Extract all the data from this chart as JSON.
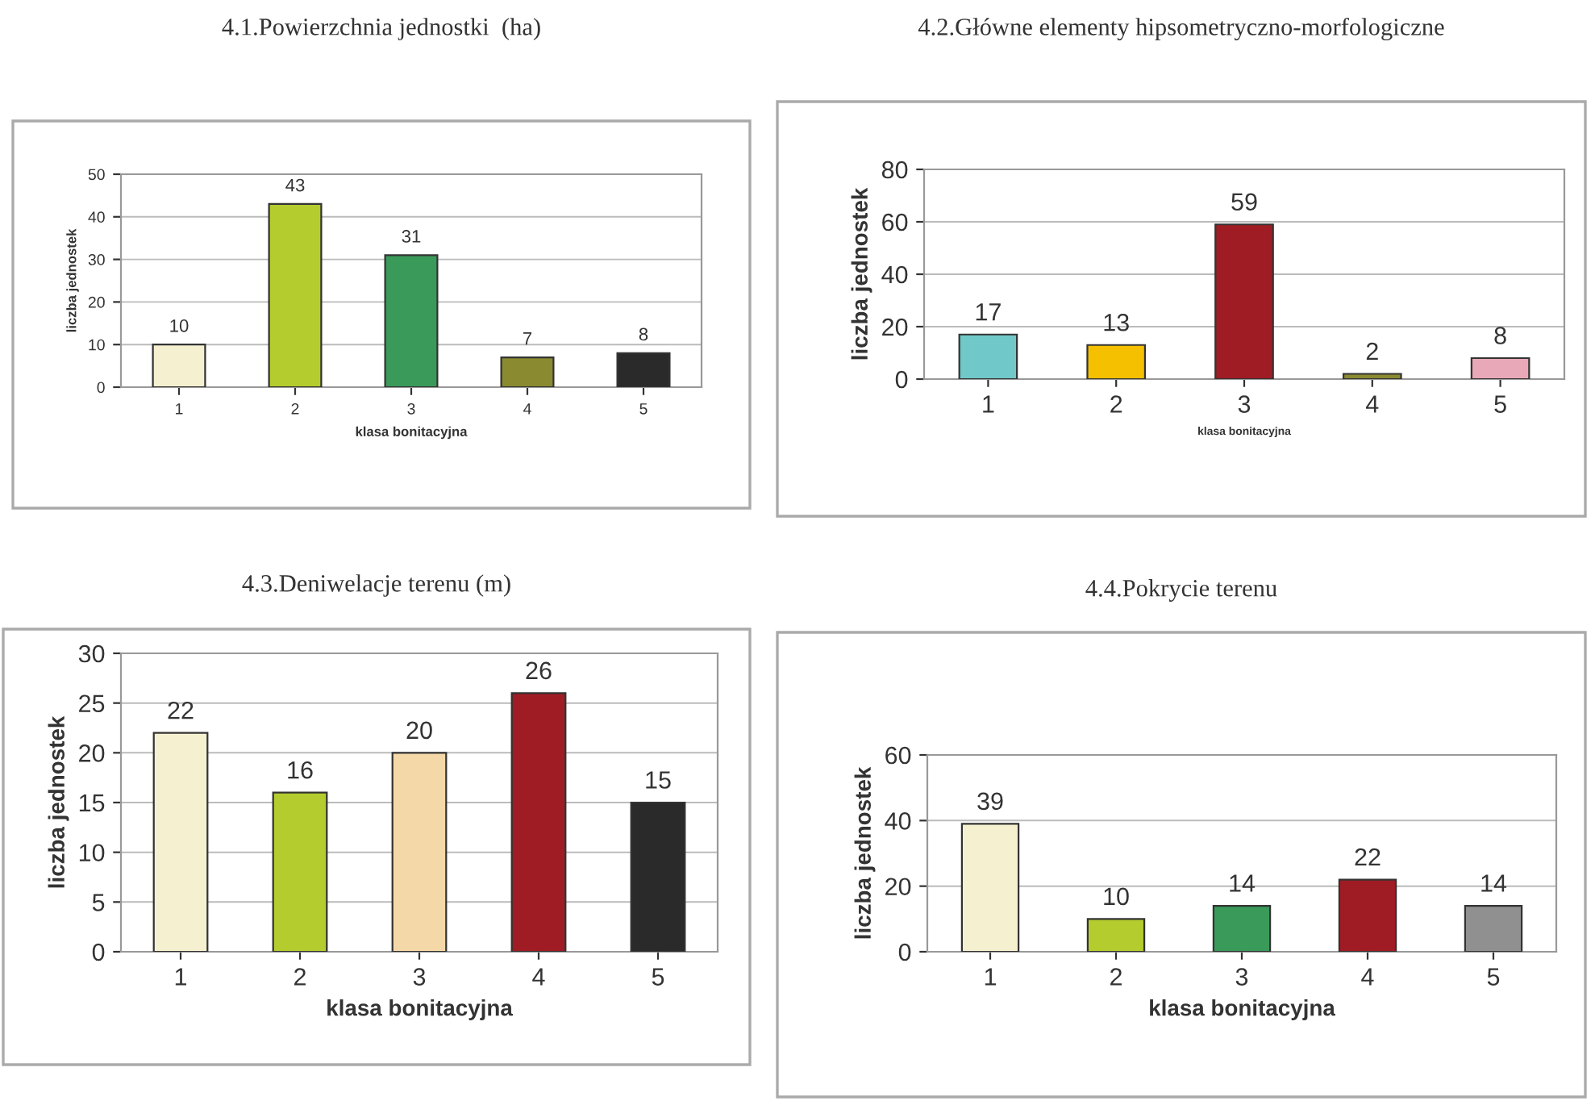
{
  "chart_data": [
    {
      "type": "bar",
      "title": "4.1.Powierzchnia jednostki  (ha)",
      "xlabel": "klasa bonitacyjna",
      "ylabel": "liczba jednostek",
      "categories": [
        "1",
        "2",
        "3",
        "4",
        "5"
      ],
      "values": [
        10,
        43,
        31,
        7,
        8
      ],
      "colors": [
        "#f5f0d0",
        "#b5cc2e",
        "#3a9a5a",
        "#8a8a30",
        "#2a2a2a"
      ],
      "ylim": [
        0,
        50
      ],
      "yticks": [
        0,
        10,
        20,
        30,
        40,
        50
      ],
      "grid": "y",
      "data_labels": true
    },
    {
      "type": "bar",
      "title": "4.2.Główne elementy hipsometryczno-morfologiczne",
      "xlabel": "klasa bonitacyjna",
      "ylabel": "liczba jednostek",
      "categories": [
        "1",
        "2",
        "3",
        "4",
        "5"
      ],
      "values": [
        17,
        13,
        59,
        2,
        8
      ],
      "colors": [
        "#70c8c8",
        "#f5c000",
        "#a01c24",
        "#8a8a30",
        "#e8a8b8"
      ],
      "ylim": [
        0,
        80
      ],
      "yticks": [
        0,
        20,
        40,
        60,
        80
      ],
      "grid": "y",
      "data_labels": true
    },
    {
      "type": "bar",
      "title": "4.3.Deniwelacje terenu (m)",
      "xlabel": "klasa bonitacyjna",
      "ylabel": "liczba jednostek",
      "categories": [
        "1",
        "2",
        "3",
        "4",
        "5"
      ],
      "values": [
        22,
        16,
        20,
        26,
        15
      ],
      "colors": [
        "#f5f0d0",
        "#b5cc2e",
        "#f5d8a8",
        "#a01c24",
        "#2a2a2a"
      ],
      "ylim": [
        0,
        30
      ],
      "yticks": [
        0,
        5,
        10,
        15,
        20,
        25,
        30
      ],
      "grid": "y",
      "data_labels": true
    },
    {
      "type": "bar",
      "title": "4.4.Pokrycie terenu",
      "xlabel": "klasa bonitacyjna",
      "ylabel": "liczba jednostek",
      "categories": [
        "1",
        "2",
        "3",
        "4",
        "5"
      ],
      "values": [
        39,
        10,
        14,
        22,
        14
      ],
      "colors": [
        "#f5f0d0",
        "#b5cc2e",
        "#3a9a5a",
        "#a01c24",
        "#909090"
      ],
      "ylim": [
        0,
        60
      ],
      "yticks": [
        0,
        20,
        40,
        60
      ],
      "grid": "y",
      "data_labels": true
    }
  ]
}
